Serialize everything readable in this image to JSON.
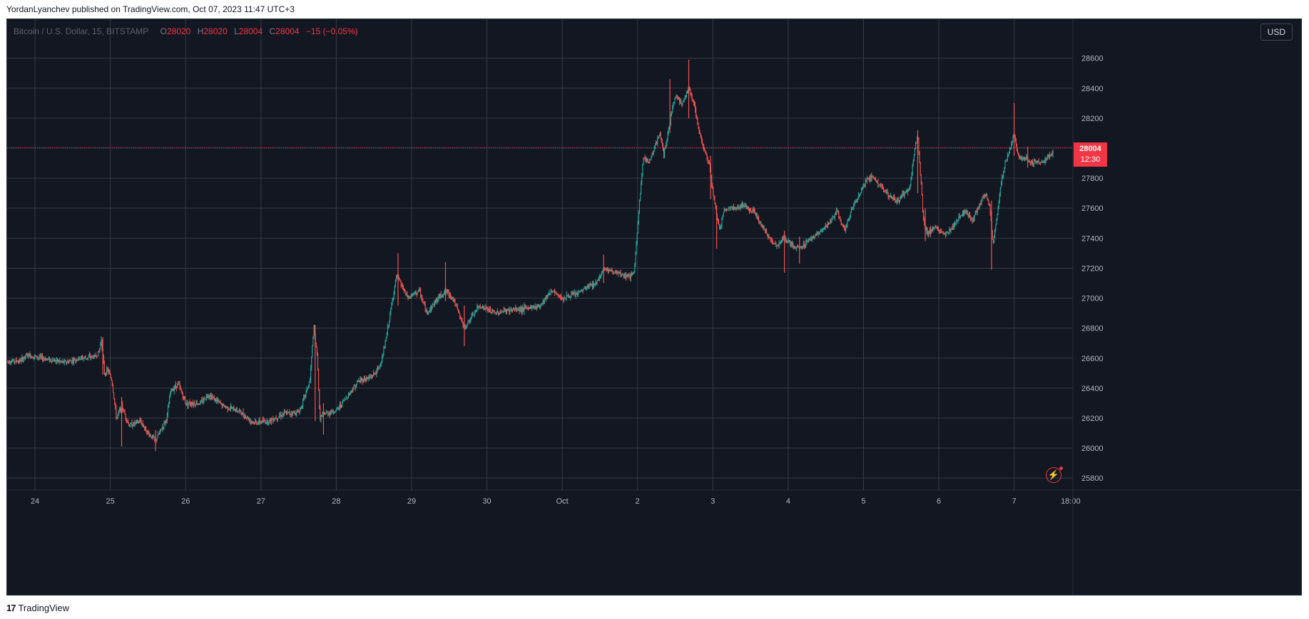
{
  "header": {
    "published_text": "YordanLyanchev published on TradingView.com, Oct 07, 2023 11:47 UTC+3"
  },
  "legend": {
    "symbol": "Bitcoin / U.S. Dollar, 15, BITSTAMP",
    "open_label": "O",
    "open": "28020",
    "high_label": "H",
    "high": "28020",
    "low_label": "L",
    "low": "28004",
    "close_label": "C",
    "close": "28004",
    "change": "−15 (−0.05%)"
  },
  "currency_button": "USD",
  "price_badge": {
    "price": "28004",
    "countdown": "12:30"
  },
  "footer": {
    "logo_glyph": "17",
    "brand": "TradingView"
  },
  "colors": {
    "background": "#131722",
    "grid": "#363a45",
    "up": "#26a69a",
    "down": "#ef5350",
    "price_line": "#f23645",
    "axis_text": "#b2b5be"
  },
  "icons": {
    "flash": "lightning-alert-icon",
    "logo": "tradingview-logo-icon"
  },
  "chart_data": {
    "type": "candlestick",
    "interval": "15",
    "exchange": "BITSTAMP",
    "y_ticks": [
      25800,
      26000,
      26200,
      26400,
      26600,
      26800,
      27000,
      27200,
      27400,
      27600,
      27800,
      28000,
      28200,
      28400,
      28600
    ],
    "ylim": [
      25720,
      28860
    ],
    "x_ticks": [
      {
        "label": "24",
        "day": 0
      },
      {
        "label": "25",
        "day": 1
      },
      {
        "label": "26",
        "day": 2
      },
      {
        "label": "27",
        "day": 3
      },
      {
        "label": "28",
        "day": 4
      },
      {
        "label": "29",
        "day": 5
      },
      {
        "label": "30",
        "day": 6
      },
      {
        "label": "Oct",
        "day": 7
      },
      {
        "label": "2",
        "day": 8
      },
      {
        "label": "3",
        "day": 9
      },
      {
        "label": "4",
        "day": 10
      },
      {
        "label": "5",
        "day": 11
      },
      {
        "label": "6",
        "day": 12
      },
      {
        "label": "7",
        "day": 13
      },
      {
        "label": "18:00",
        "day": 13.75
      }
    ],
    "xlim": [
      -0.37,
      13.78
    ],
    "last_price": 28004,
    "price_path": [
      [
        -0.37,
        26580
      ],
      [
        -0.2,
        26580
      ],
      [
        -0.1,
        26620
      ],
      [
        0.1,
        26600
      ],
      [
        0.4,
        26570
      ],
      [
        0.6,
        26600
      ],
      [
        0.8,
        26610
      ],
      [
        0.85,
        26640
      ],
      [
        0.88,
        26730
      ],
      [
        0.92,
        26500
      ],
      [
        0.97,
        26520
      ],
      [
        1.02,
        26450
      ],
      [
        1.08,
        26200
      ],
      [
        1.15,
        26280
      ],
      [
        1.25,
        26150
      ],
      [
        1.4,
        26180
      ],
      [
        1.5,
        26100
      ],
      [
        1.6,
        26050
      ],
      [
        1.75,
        26200
      ],
      [
        1.8,
        26380
      ],
      [
        1.9,
        26430
      ],
      [
        2.0,
        26300
      ],
      [
        2.2,
        26300
      ],
      [
        2.3,
        26360
      ],
      [
        2.5,
        26280
      ],
      [
        2.7,
        26250
      ],
      [
        2.9,
        26170
      ],
      [
        3.1,
        26180
      ],
      [
        3.3,
        26230
      ],
      [
        3.5,
        26240
      ],
      [
        3.55,
        26300
      ],
      [
        3.65,
        26450
      ],
      [
        3.7,
        26800
      ],
      [
        3.75,
        26600
      ],
      [
        3.78,
        26200
      ],
      [
        3.85,
        26230
      ],
      [
        4.0,
        26250
      ],
      [
        4.15,
        26350
      ],
      [
        4.3,
        26450
      ],
      [
        4.45,
        26470
      ],
      [
        4.55,
        26520
      ],
      [
        4.6,
        26580
      ],
      [
        4.65,
        26700
      ],
      [
        4.75,
        27000
      ],
      [
        4.8,
        27150
      ],
      [
        4.85,
        27100
      ],
      [
        4.95,
        27000
      ],
      [
        5.1,
        27050
      ],
      [
        5.2,
        26900
      ],
      [
        5.35,
        27000
      ],
      [
        5.45,
        27050
      ],
      [
        5.55,
        27000
      ],
      [
        5.7,
        26800
      ],
      [
        5.9,
        26950
      ],
      [
        6.1,
        26900
      ],
      [
        6.3,
        26920
      ],
      [
        6.5,
        26930
      ],
      [
        6.7,
        26950
      ],
      [
        6.85,
        27050
      ],
      [
        7.0,
        27000
      ],
      [
        7.2,
        27030
      ],
      [
        7.35,
        27080
      ],
      [
        7.45,
        27100
      ],
      [
        7.55,
        27200
      ],
      [
        7.65,
        27180
      ],
      [
        7.8,
        27150
      ],
      [
        7.95,
        27150
      ],
      [
        8.02,
        27600
      ],
      [
        8.08,
        27950
      ],
      [
        8.15,
        27900
      ],
      [
        8.22,
        28000
      ],
      [
        8.3,
        28100
      ],
      [
        8.35,
        27950
      ],
      [
        8.42,
        28150
      ],
      [
        8.5,
        28350
      ],
      [
        8.6,
        28300
      ],
      [
        8.68,
        28400
      ],
      [
        8.75,
        28300
      ],
      [
        8.82,
        28100
      ],
      [
        8.88,
        28000
      ],
      [
        8.95,
        27900
      ],
      [
        9.0,
        27700
      ],
      [
        9.05,
        27550
      ],
      [
        9.1,
        27450
      ],
      [
        9.15,
        27600
      ],
      [
        9.3,
        27600
      ],
      [
        9.4,
        27620
      ],
      [
        9.55,
        27580
      ],
      [
        9.65,
        27480
      ],
      [
        9.75,
        27400
      ],
      [
        9.85,
        27350
      ],
      [
        9.95,
        27400
      ],
      [
        10.05,
        27350
      ],
      [
        10.15,
        27330
      ],
      [
        10.3,
        27400
      ],
      [
        10.45,
        27450
      ],
      [
        10.55,
        27500
      ],
      [
        10.65,
        27580
      ],
      [
        10.75,
        27450
      ],
      [
        10.85,
        27600
      ],
      [
        10.95,
        27700
      ],
      [
        11.05,
        27800
      ],
      [
        11.15,
        27800
      ],
      [
        11.25,
        27730
      ],
      [
        11.35,
        27680
      ],
      [
        11.45,
        27650
      ],
      [
        11.55,
        27700
      ],
      [
        11.62,
        27750
      ],
      [
        11.68,
        28000
      ],
      [
        11.72,
        28080
      ],
      [
        11.76,
        27800
      ],
      [
        11.8,
        27500
      ],
      [
        11.85,
        27430
      ],
      [
        11.95,
        27480
      ],
      [
        12.05,
        27420
      ],
      [
        12.15,
        27450
      ],
      [
        12.25,
        27530
      ],
      [
        12.35,
        27580
      ],
      [
        12.45,
        27520
      ],
      [
        12.55,
        27630
      ],
      [
        12.62,
        27700
      ],
      [
        12.68,
        27600
      ],
      [
        12.72,
        27350
      ],
      [
        12.76,
        27500
      ],
      [
        12.82,
        27750
      ],
      [
        12.88,
        27900
      ],
      [
        12.95,
        28000
      ],
      [
        13.0,
        28100
      ],
      [
        13.05,
        27950
      ],
      [
        13.12,
        27930
      ],
      [
        13.25,
        27910
      ],
      [
        13.38,
        27910
      ],
      [
        13.5,
        27950
      ],
      [
        13.52,
        28000
      ]
    ],
    "spikes": [
      {
        "day": 0.9,
        "high": 26740,
        "low": 26490
      },
      {
        "day": 1.15,
        "high": 26340,
        "low": 26010
      },
      {
        "day": 1.6,
        "high": 26120,
        "low": 25980
      },
      {
        "day": 3.72,
        "high": 26820,
        "low": 26180
      },
      {
        "day": 3.83,
        "high": 26300,
        "low": 26090
      },
      {
        "day": 4.82,
        "high": 27300,
        "low": 26950
      },
      {
        "day": 5.45,
        "high": 27240,
        "low": 26980
      },
      {
        "day": 5.7,
        "high": 26950,
        "low": 26680
      },
      {
        "day": 7.55,
        "high": 27290,
        "low": 27100
      },
      {
        "day": 8.43,
        "high": 28460,
        "low": 28100
      },
      {
        "day": 8.68,
        "high": 28590,
        "low": 28200
      },
      {
        "day": 8.97,
        "high": 27950,
        "low": 27660
      },
      {
        "day": 9.05,
        "high": 27620,
        "low": 27330
      },
      {
        "day": 9.95,
        "high": 27450,
        "low": 27170
      },
      {
        "day": 10.15,
        "high": 27410,
        "low": 27230
      },
      {
        "day": 11.72,
        "high": 28120,
        "low": 27700
      },
      {
        "day": 11.82,
        "high": 27600,
        "low": 27380
      },
      {
        "day": 12.7,
        "high": 27650,
        "low": 27190
      },
      {
        "day": 13.0,
        "high": 28300,
        "low": 27950
      },
      {
        "day": 13.18,
        "high": 28010,
        "low": 27870
      }
    ]
  }
}
